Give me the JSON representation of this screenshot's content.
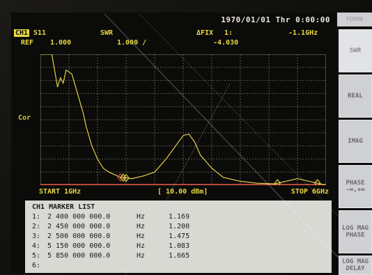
{
  "status": {
    "datetime": "1970/01/01 Thr  0:00:00"
  },
  "header": {
    "channel": "CH1",
    "param": "S11",
    "format": "SWR",
    "delta_mode": "ΔFIX",
    "marker_label": "1:",
    "marker_freq": "-1.1GHz",
    "ref_label": "REF",
    "ref_value": "1.000",
    "scale_value": "1.000 /",
    "delta_value": "-4.030"
  },
  "side_label": "Cor",
  "footer": {
    "start": "START 1GHz",
    "ref_level": "[ 10.00 dBm]",
    "stop": "STOP 6GHz"
  },
  "markers": {
    "title": "CH1 MARKER LIST",
    "rows": [
      {
        "idx": "1:",
        "freq": "2 400 000 000.0",
        "unit": "Hz",
        "value": "1.169",
        "active": true
      },
      {
        "idx": "2:",
        "freq": "2 450 000 000.0",
        "unit": "Hz",
        "value": "1.200"
      },
      {
        "idx": "3:",
        "freq": "2 500 000 000.0",
        "unit": "Hz",
        "value": "1.475"
      },
      {
        "idx": "4:",
        "freq": "5 150 000 000.0",
        "unit": "Hz",
        "value": "1.083"
      },
      {
        "idx": "5:",
        "freq": "5 850 000 000.0",
        "unit": "Hz",
        "value": "1.665"
      },
      {
        "idx": "6:",
        "freq": "",
        "unit": "",
        "value": ""
      }
    ]
  },
  "softkeys": {
    "title": "FORMA",
    "keys": [
      {
        "label": "SWR",
        "selected": true
      },
      {
        "label": "REAL"
      },
      {
        "label": "IMAG"
      },
      {
        "label": "PHASE",
        "sub": "-∞,+∞"
      },
      {
        "label": "LOG MAG",
        "sub": "PHASE"
      },
      {
        "label": "LOG MAG",
        "sub": "DELAY"
      }
    ]
  },
  "colors": {
    "trace": "#e6cf4a",
    "grid": "#8a8a80",
    "text": "#e8d742",
    "active_marker": "#d84b3a",
    "background": "#0b0b09"
  },
  "chart_data": {
    "type": "line",
    "x_unit": "GHz",
    "xlim": [
      1,
      6
    ],
    "ylim": [
      1,
      11
    ],
    "grid": true,
    "series": [
      {
        "x": [
          1.0,
          1.2,
          1.3,
          1.35,
          1.4,
          1.45,
          1.55,
          1.65,
          1.75,
          1.8,
          1.9,
          2.0,
          2.1,
          2.2,
          2.4,
          2.6,
          2.8,
          3.0,
          3.2,
          3.4,
          3.5,
          3.6,
          3.7,
          3.8,
          4.0,
          4.2,
          4.5,
          4.8,
          5.1,
          5.5,
          5.8,
          6.0
        ],
        "y": [
          11.0,
          11.0,
          8.5,
          9.2,
          8.8,
          9.8,
          9.5,
          8.0,
          6.5,
          5.5,
          4.0,
          3.0,
          2.3,
          2.0,
          1.6,
          1.5,
          1.7,
          2.0,
          3.0,
          4.2,
          4.8,
          4.9,
          4.3,
          3.3,
          2.3,
          1.6,
          1.3,
          1.15,
          1.1,
          1.5,
          1.2,
          1.0
        ]
      }
    ]
  }
}
